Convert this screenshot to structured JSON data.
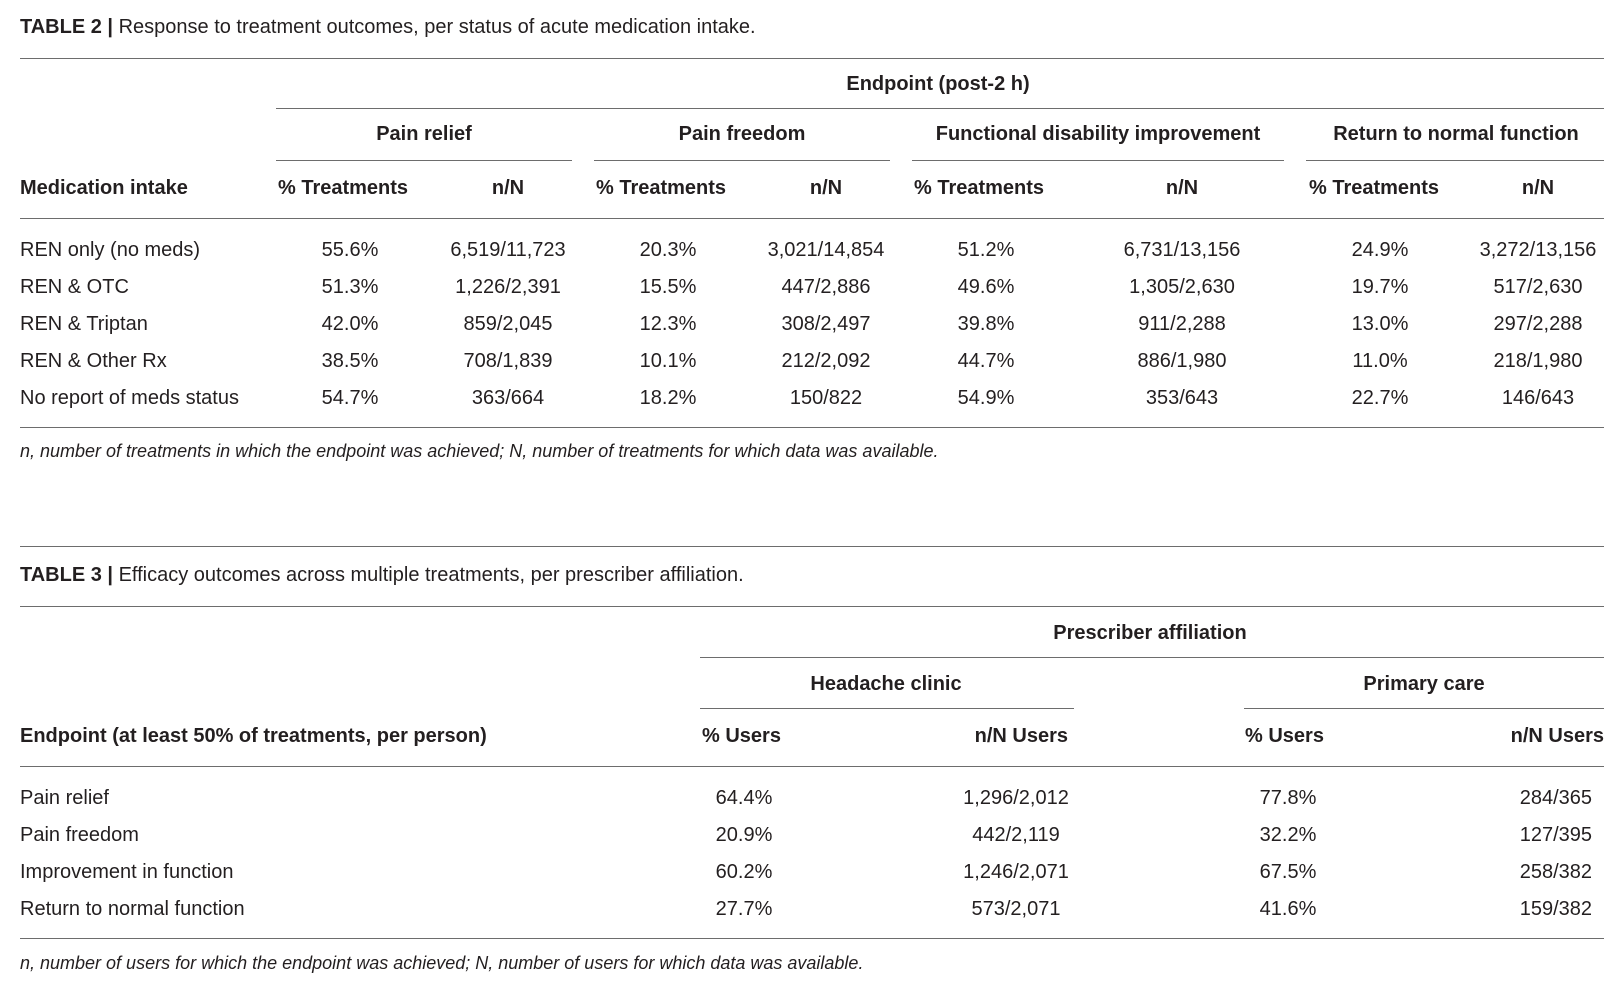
{
  "table2": {
    "label": "TABLE 2 |",
    "caption": "Response to treatment outcomes, per status of acute medication intake.",
    "super_header": "Endpoint (post-2 h)",
    "groups": [
      "Pain relief",
      "Pain freedom",
      "Functional disability improvement",
      "Return to normal function"
    ],
    "row_header": "Medication intake",
    "sub_headers": [
      "% Treatments",
      "n/N",
      "% Treatments",
      "n/N",
      "% Treatments",
      "n/N",
      "% Treatments",
      "n/N"
    ],
    "rows": [
      {
        "label": "REN only (no meds)",
        "cells": [
          "55.6%",
          "6,519/11,723",
          "20.3%",
          "3,021/14,854",
          "51.2%",
          "6,731/13,156",
          "24.9%",
          "3,272/13,156"
        ]
      },
      {
        "label": "REN & OTC",
        "cells": [
          "51.3%",
          "1,226/2,391",
          "15.5%",
          "447/2,886",
          "49.6%",
          "1,305/2,630",
          "19.7%",
          "517/2,630"
        ]
      },
      {
        "label": "REN & Triptan",
        "cells": [
          "42.0%",
          "859/2,045",
          "12.3%",
          "308/2,497",
          "39.8%",
          "911/2,288",
          "13.0%",
          "297/2,288"
        ]
      },
      {
        "label": "REN & Other Rx",
        "cells": [
          "38.5%",
          "708/1,839",
          "10.1%",
          "212/2,092",
          "44.7%",
          "886/1,980",
          "11.0%",
          "218/1,980"
        ]
      },
      {
        "label": "No report of meds status",
        "cells": [
          "54.7%",
          "363/664",
          "18.2%",
          "150/822",
          "54.9%",
          "353/643",
          "22.7%",
          "146/643"
        ]
      }
    ],
    "footnote": "n, number of treatments in which the endpoint was achieved; N, number of treatments for which data was available."
  },
  "table3": {
    "label": "TABLE 3 |",
    "caption": "Efficacy outcomes across multiple treatments, per prescriber affiliation.",
    "super_header": "Prescriber affiliation",
    "groups": [
      "Headache clinic",
      "Primary care"
    ],
    "row_header": "Endpoint (at least 50% of treatments, per person)",
    "sub_headers": [
      "% Users",
      "n/N Users",
      "% Users",
      "n/N Users"
    ],
    "rows": [
      {
        "label": "Pain relief",
        "cells": [
          "64.4%",
          "1,296/2,012",
          "77.8%",
          "284/365"
        ]
      },
      {
        "label": "Pain freedom",
        "cells": [
          "20.9%",
          "442/2,119",
          "32.2%",
          "127/395"
        ]
      },
      {
        "label": "Improvement in function",
        "cells": [
          "60.2%",
          "1,246/2,071",
          "67.5%",
          "258/382"
        ]
      },
      {
        "label": "Return to normal function",
        "cells": [
          "27.7%",
          "573/2,071",
          "41.6%",
          "159/382"
        ]
      }
    ],
    "footnote": "n, number of users for which the endpoint was achieved; N, number of users for which data was available."
  }
}
